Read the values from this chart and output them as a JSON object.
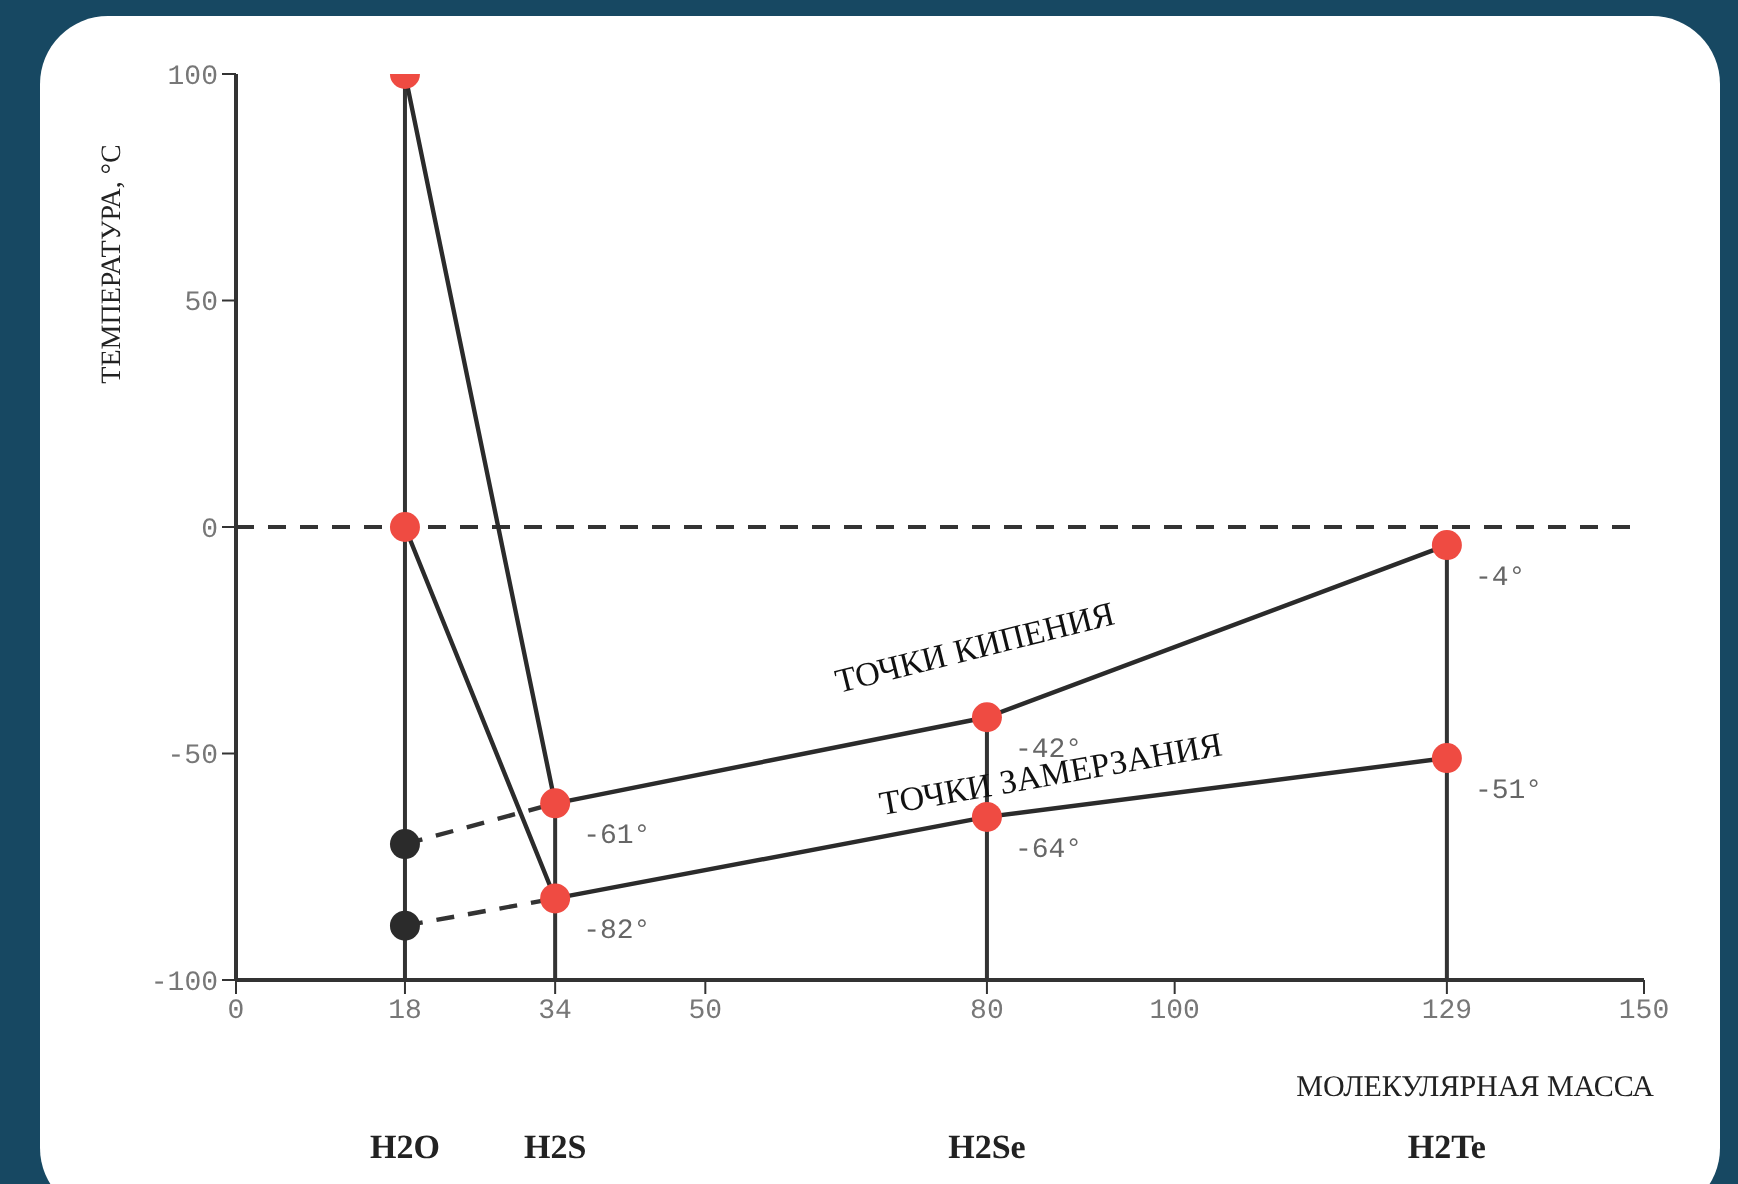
{
  "chart_data": {
    "type": "line",
    "ylabel": "ТЕМПЕРАТУРА, °C",
    "xlabel": "МОЛЕКУЛЯРНАЯ МАССА",
    "xlim": [
      0,
      150
    ],
    "xticks": [
      0,
      18,
      34,
      50,
      80,
      100,
      129,
      150
    ],
    "ylim": [
      -100,
      100
    ],
    "yticks": [
      100,
      50,
      0,
      -50,
      -100
    ],
    "grid": false,
    "legend": false,
    "marker": "circle",
    "line_style": "solid",
    "series": [
      {
        "type": "line",
        "color": "#333333",
        "line_style": "dashed",
        "marker": "none",
        "x": [
          18,
          34
        ],
        "values": [
          -70,
          -61
        ]
      },
      {
        "type": "line",
        "color": "#333333",
        "line_style": "dashed",
        "marker": "none",
        "x": [
          18,
          34
        ],
        "values": [
          -88,
          -82
        ]
      },
      {
        "type": "scatter",
        "color": "#2b2b2b",
        "x": [
          18,
          18
        ],
        "values": [
          -70,
          -88
        ]
      },
      {
        "color": "#2b2b2b",
        "colors": [
          "#ef4b42",
          "#ef4b42",
          "#ef4b42",
          "#ef4b42"
        ],
        "x": [
          18,
          34,
          80,
          129
        ],
        "values": [
          100,
          -61,
          -42,
          -4
        ],
        "value_labels": [
          null,
          "-61°",
          "-42°",
          "-4°"
        ]
      },
      {
        "color": "#2b2b2b",
        "colors": [
          "#ef4b42",
          "#ef4b42",
          "#ef4b42",
          "#ef4b42"
        ],
        "x": [
          18,
          34,
          80,
          129
        ],
        "values": [
          0,
          -82,
          -64,
          -51
        ],
        "value_labels": [
          null,
          "-82°",
          "-64°",
          "-51°"
        ]
      }
    ],
    "ref_lines": [
      {
        "axis": "y",
        "value": 0,
        "label": null,
        "color": "#333333",
        "line_style": "dashed"
      },
      {
        "axis": "x",
        "value": 18,
        "label": null,
        "color": "#333333"
      },
      {
        "axis": "x",
        "value": 34,
        "label": null,
        "color": "#333333"
      },
      {
        "axis": "x",
        "value": 80,
        "label": null,
        "color": "#333333"
      },
      {
        "axis": "x",
        "value": 129,
        "label": null,
        "color": "#333333"
      }
    ],
    "annotations": [
      "ТОЧКИ КИПЕНИЯ",
      "ТОЧКИ ЗАМЕРЗАНИЯ",
      "H2O",
      "H2S",
      "H2Se",
      "H2Te"
    ]
  }
}
